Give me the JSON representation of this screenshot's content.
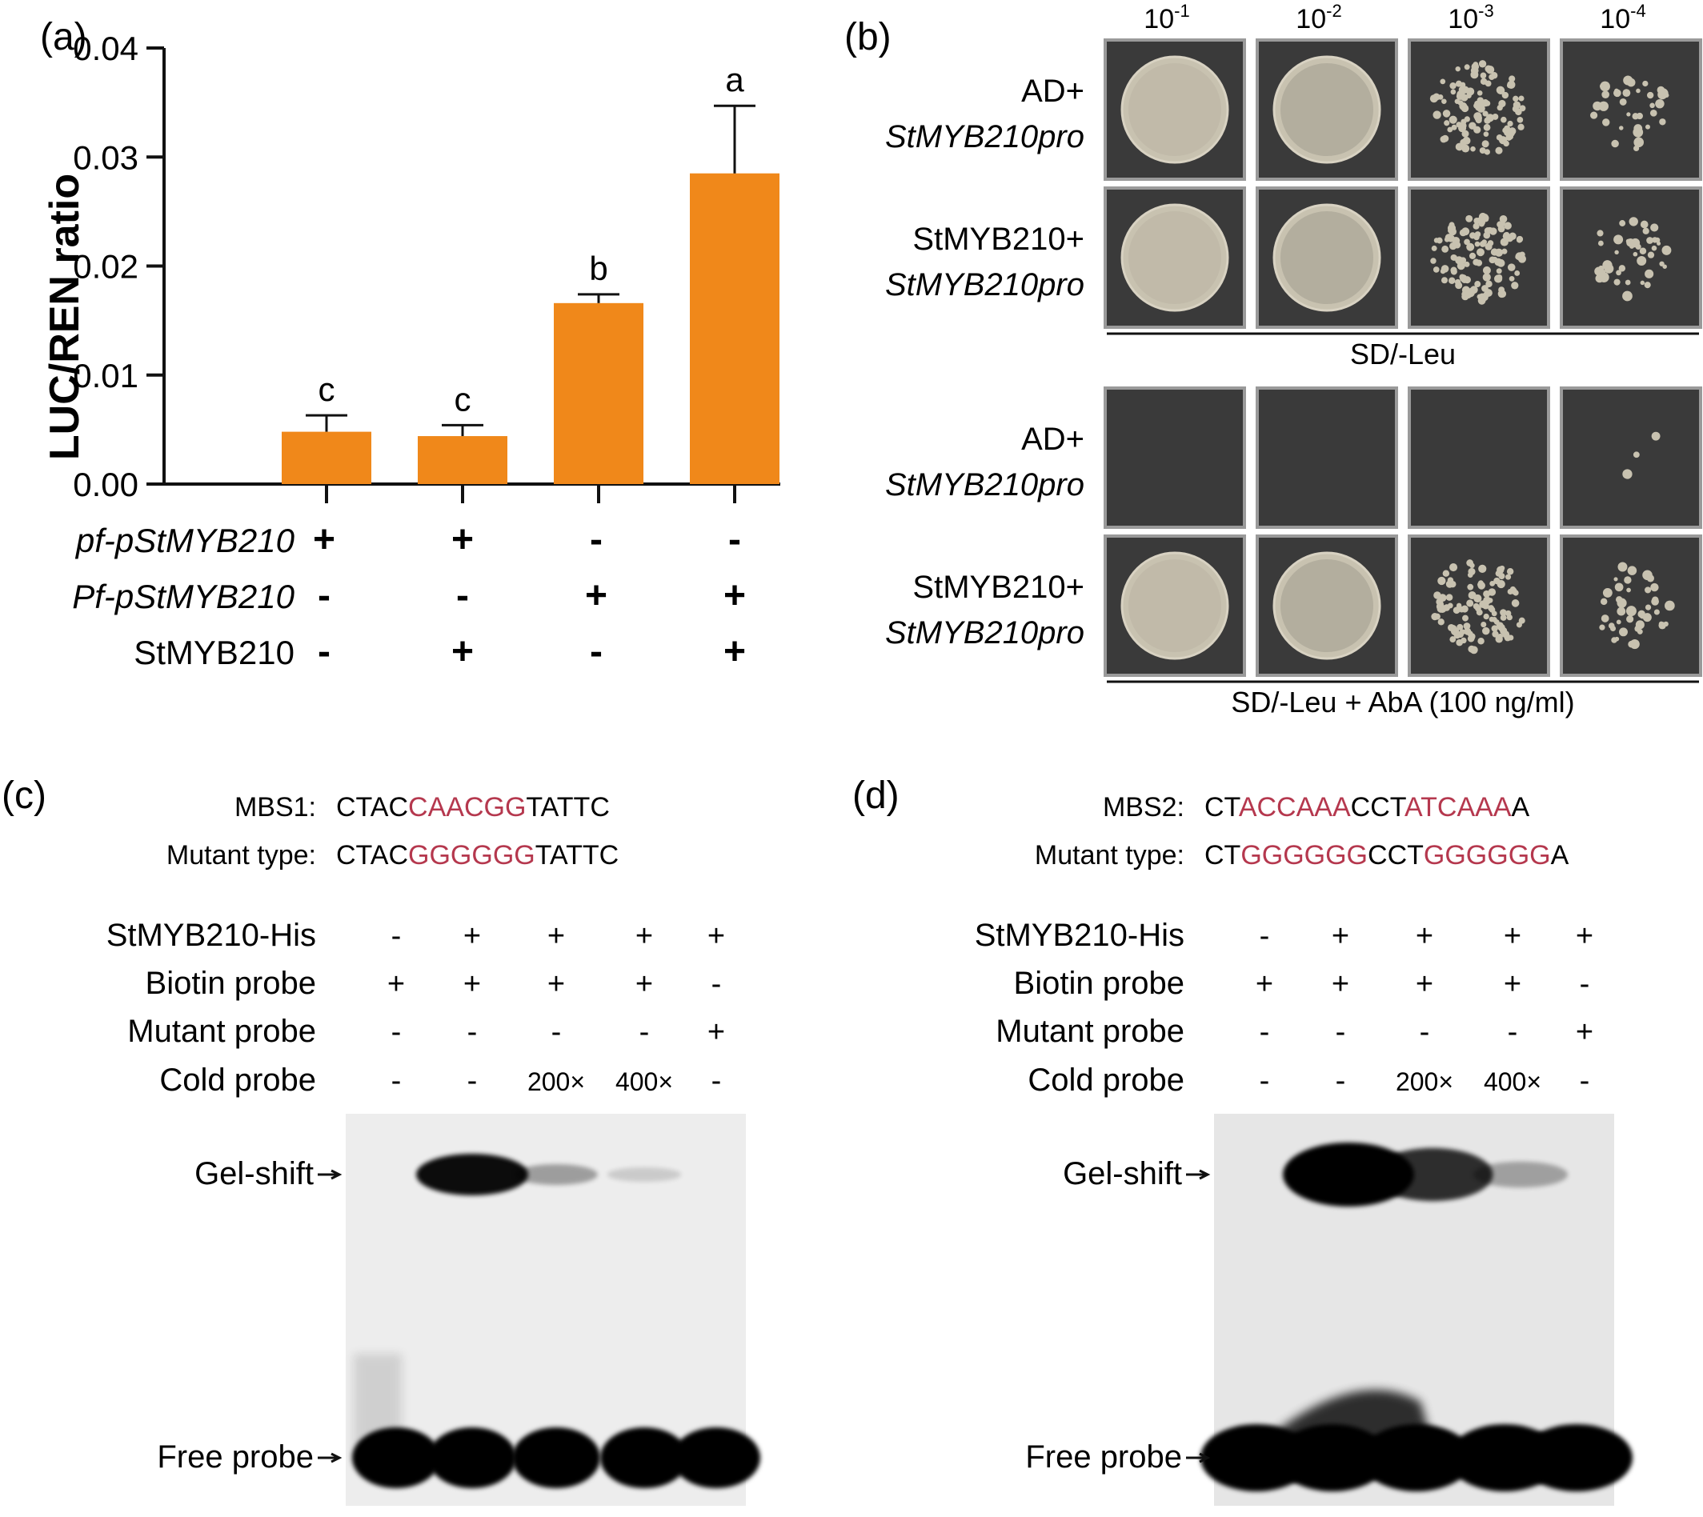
{
  "colors": {
    "bar": "#F0881A",
    "highlight": "#B5384E",
    "plate_background": "#3A3A3A",
    "colony": "#C8C2B0",
    "gel_c_background": "#EDEDED",
    "gel_d_background": "#E6E6E6"
  },
  "panel_a": {
    "label": "(a)",
    "chart_data": {
      "type": "bar",
      "title": "",
      "ylabel": "LUC/REN ratio",
      "xlabel": "",
      "ylim": [
        0,
        0.04
      ],
      "yticks": [
        "0.00",
        "0.01",
        "0.02",
        "0.03",
        "0.04"
      ],
      "ytick_values": [
        0,
        0.01,
        0.02,
        0.03,
        0.04
      ],
      "grid": false,
      "values": [
        0.0048,
        0.0044,
        0.0166,
        0.0285
      ],
      "errors": [
        0.0015,
        0.001,
        0.0008,
        0.0062
      ],
      "significance_letters": [
        "c",
        "c",
        "b",
        "a"
      ],
      "treatment_rows": [
        {
          "label": "pf-pStMYB210",
          "italic": true,
          "signs": [
            "+",
            "+",
            "-",
            "-"
          ]
        },
        {
          "label": "Pf-pStMYB210",
          "italic": true,
          "signs": [
            "-",
            "-",
            "+",
            "+"
          ]
        },
        {
          "label": "StMYB210",
          "italic": false,
          "signs": [
            "-",
            "+",
            "-",
            "+"
          ]
        }
      ]
    }
  },
  "panel_b": {
    "label": "(b)",
    "dilutions": [
      {
        "base": "10",
        "exp": "-1"
      },
      {
        "base": "10",
        "exp": "-2"
      },
      {
        "base": "10",
        "exp": "-3"
      },
      {
        "base": "10",
        "exp": "-4"
      }
    ],
    "rows": [
      {
        "line1": "AD+",
        "line2": "StMYB210pro",
        "growth": [
          1,
          1,
          0.8,
          0.25
        ]
      },
      {
        "line1": "StMYB210+",
        "line2": "StMYB210pro",
        "growth": [
          1,
          1,
          0.85,
          0.3
        ]
      },
      {
        "line1": "AD+",
        "line2": "StMYB210pro",
        "growth": [
          0,
          0,
          0,
          0.02
        ]
      },
      {
        "line1": "StMYB210+",
        "line2": "StMYB210pro",
        "growth": [
          1,
          1,
          0.75,
          0.3
        ]
      }
    ],
    "media": [
      "SD/-Leu",
      "SD/-Leu + AbA (100 ng/ml)"
    ]
  },
  "panel_c": {
    "label": "(c)",
    "wt_name": "MBS1:",
    "wt_seq": [
      {
        "t": "CTAC",
        "h": false
      },
      {
        "t": "CAACGG",
        "h": true
      },
      {
        "t": "TATTC",
        "h": false
      }
    ],
    "mut_name": "Mutant type:",
    "mut_seq": [
      {
        "t": "CTAC",
        "h": false
      },
      {
        "t": "GGGGGG",
        "h": true
      },
      {
        "t": "TATTC",
        "h": false
      }
    ],
    "rows": [
      {
        "label": "StMYB210-His",
        "signs": [
          "-",
          "+",
          "+",
          "+",
          "+"
        ]
      },
      {
        "label": "Biotin probe",
        "signs": [
          "+",
          "+",
          "+",
          "+",
          "-"
        ]
      },
      {
        "label": "Mutant probe",
        "signs": [
          "-",
          "-",
          "-",
          "-",
          "+"
        ]
      },
      {
        "label": "Cold probe",
        "signs": [
          "-",
          "-",
          "200×",
          "400×",
          "-"
        ]
      }
    ],
    "shift_label": "Gel-shift",
    "free_label": "Free probe",
    "shift_intensity": [
      0,
      1,
      0.35,
      0.15,
      0
    ],
    "free_intensity": [
      1,
      1,
      1,
      1,
      1
    ]
  },
  "panel_d": {
    "label": "(d)",
    "wt_name": "MBS2:",
    "wt_seq": [
      {
        "t": "CT",
        "h": false
      },
      {
        "t": "ACCAAA",
        "h": true
      },
      {
        "t": "CCT",
        "h": false
      },
      {
        "t": "ATCAAA",
        "h": true
      },
      {
        "t": "A",
        "h": false
      }
    ],
    "mut_name": "Mutant type:",
    "mut_seq": [
      {
        "t": "CT",
        "h": false
      },
      {
        "t": "GGGGGG",
        "h": true
      },
      {
        "t": "CCT",
        "h": false
      },
      {
        "t": "GGGGGG",
        "h": true
      },
      {
        "t": "A",
        "h": false
      }
    ],
    "rows": [
      {
        "label": "StMYB210-His",
        "signs": [
          "-",
          "+",
          "+",
          "+",
          "+"
        ]
      },
      {
        "label": "Biotin probe",
        "signs": [
          "+",
          "+",
          "+",
          "+",
          "-"
        ]
      },
      {
        "label": "Mutant probe",
        "signs": [
          "-",
          "-",
          "-",
          "-",
          "+"
        ]
      },
      {
        "label": "Cold probe",
        "signs": [
          "-",
          "-",
          "200×",
          "400×",
          "-"
        ]
      }
    ],
    "shift_label": "Gel-shift",
    "free_label": "Free probe",
    "shift_intensity": [
      0,
      1,
      0.8,
      0.3,
      0
    ],
    "free_intensity": [
      1,
      1,
      1,
      1,
      1
    ]
  }
}
